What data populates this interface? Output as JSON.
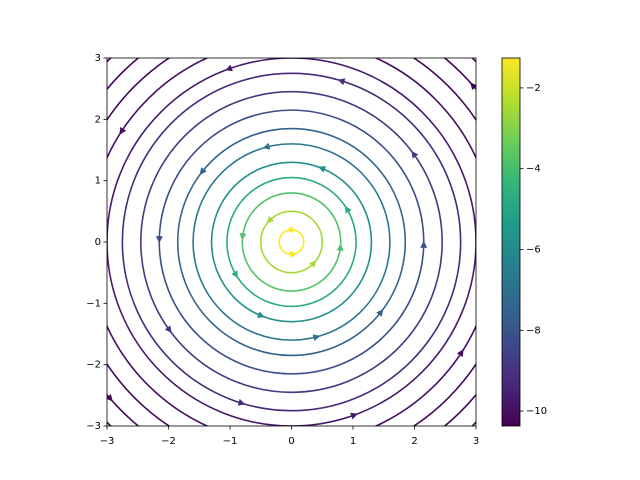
{
  "chart_data": {
    "type": "streamplot",
    "xlim": [
      -3,
      3
    ],
    "ylim": [
      -3,
      3
    ],
    "xticks": [
      {
        "value": -3,
        "label": "−3"
      },
      {
        "value": -2,
        "label": "−2"
      },
      {
        "value": -1,
        "label": "−1"
      },
      0,
      1,
      2,
      3
    ],
    "yticks": [
      {
        "value": -3,
        "label": "−3"
      },
      {
        "value": -2,
        "label": "−2"
      },
      {
        "value": -1,
        "label": "−1"
      },
      0,
      1,
      2,
      3
    ],
    "colormap": [
      "#440154",
      "#482878",
      "#3e4989",
      "#31688e",
      "#26828e",
      "#1f9e89",
      "#35b779",
      "#6ece58",
      "#b5de2b",
      "#fde725"
    ],
    "clim": [
      -10.37,
      -1.26
    ],
    "cticks": [
      {
        "value": -2,
        "label": "−2"
      },
      {
        "value": -4,
        "label": "−4"
      },
      {
        "value": -6,
        "label": "−6"
      },
      {
        "value": -8,
        "label": "−8"
      },
      {
        "value": -10,
        "label": "−10"
      }
    ],
    "streamlines": [
      {
        "radius": 0.2,
        "value": -1.3
      },
      {
        "radius": 0.5,
        "value": -2.5
      },
      {
        "radius": 0.8,
        "value": -3.8
      },
      {
        "radius": 1.05,
        "value": -4.8
      },
      {
        "radius": 1.3,
        "value": -5.8
      },
      {
        "radius": 1.6,
        "value": -6.8
      },
      {
        "radius": 1.85,
        "value": -7.5
      },
      {
        "radius": 2.15,
        "value": -8.2
      },
      {
        "radius": 2.45,
        "value": -8.8
      },
      {
        "radius": 2.75,
        "value": -9.3
      },
      {
        "radius": 3.0,
        "value": -9.7
      },
      {
        "radius": 3.3,
        "value": -10.0
      },
      {
        "radius": 3.6,
        "value": -10.2
      },
      {
        "radius": 3.9,
        "value": -10.3
      },
      {
        "radius": 4.2,
        "value": -10.37
      }
    ]
  }
}
